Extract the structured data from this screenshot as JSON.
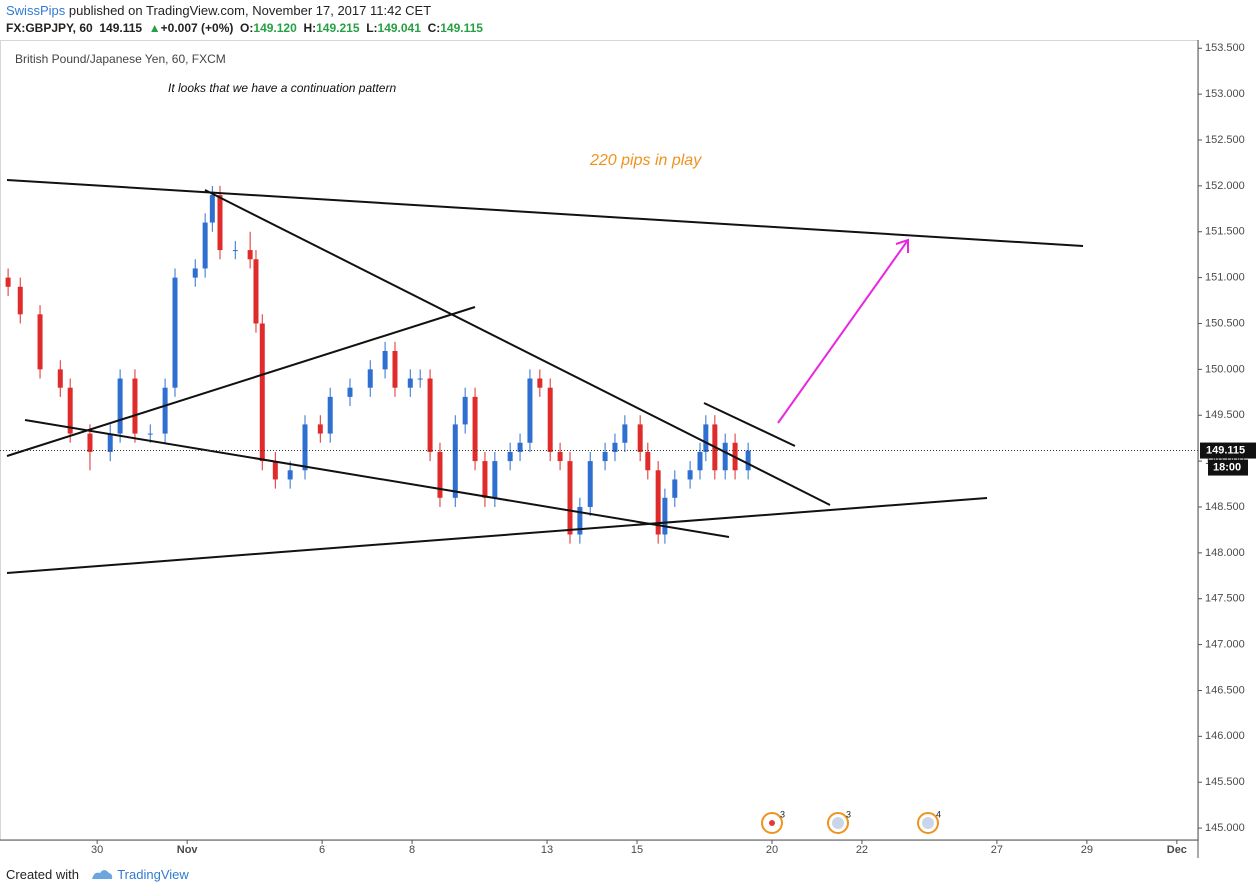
{
  "header": {
    "author": "SwissPips",
    "published": "published on TradingView.com, November 17, 2017 11:42 CET",
    "symbol": "FX:GBPJPY, 60",
    "price": "149.115",
    "arrow": "▲",
    "change": "+0.007 (+0%)",
    "o_label": "O:",
    "open": "149.120",
    "h_label": "H:",
    "high": "149.215",
    "l_label": "L:",
    "low": "149.041",
    "c_label": "C:",
    "close": "149.115"
  },
  "chart_data": {
    "type": "candlestick",
    "title": "British Pound/Japanese Yen, 60, FXCM",
    "annotations": [
      "It looks that we have a continuation pattern",
      "220 pips in play"
    ],
    "x": [
      -1.98,
      -1.71,
      -1.27,
      -0.82,
      -0.6,
      -0.16,
      0.29,
      0.51,
      0.84,
      1.18,
      1.51,
      1.73,
      2.18,
      2.4,
      2.56,
      2.73,
      3.07,
      3.4,
      3.53,
      3.67,
      3.96,
      4.29,
      4.62,
      4.96,
      5.18,
      5.62,
      6.07,
      6.4,
      6.62,
      6.96,
      7.18,
      7.4,
      7.62,
      7.96,
      8.18,
      8.4,
      8.62,
      8.84,
      9.18,
      9.4,
      9.62,
      9.84,
      10.07,
      10.29,
      10.51,
      10.73,
      10.96,
      11.29,
      11.51,
      11.73,
      12.07,
      12.24,
      12.47,
      12.62,
      12.84,
      13.18,
      13.4,
      13.53,
      13.73,
      13.96,
      14.18,
      14.47
    ],
    "ohlc": {
      "up_color": "#2e6fd0",
      "down_color": "#e02b2b",
      "open": [
        151.0,
        150.9,
        150.6,
        150.0,
        149.8,
        149.3,
        149.1,
        149.3,
        149.9,
        149.3,
        149.3,
        149.8,
        151.0,
        151.1,
        151.6,
        151.9,
        151.3,
        151.3,
        151.2,
        150.5,
        149.0,
        148.8,
        148.9,
        149.4,
        149.3,
        149.7,
        149.8,
        150.0,
        150.2,
        149.8,
        149.9,
        149.9,
        149.1,
        148.6,
        149.4,
        149.7,
        149.0,
        148.6,
        149.0,
        149.1,
        149.2,
        149.9,
        149.8,
        149.1,
        149.0,
        148.2,
        148.5,
        149.0,
        149.1,
        149.2,
        149.4,
        149.1,
        148.9,
        148.2,
        148.6,
        148.8,
        148.9,
        149.1,
        149.4,
        148.9,
        149.2,
        148.9
      ],
      "high": [
        151.1,
        151.0,
        150.7,
        150.1,
        149.9,
        149.4,
        149.4,
        150.0,
        150.0,
        149.4,
        149.9,
        151.1,
        151.2,
        151.7,
        152.0,
        152.0,
        151.4,
        151.5,
        151.3,
        150.6,
        149.1,
        149.0,
        149.5,
        149.5,
        149.8,
        149.9,
        150.1,
        150.3,
        150.3,
        150.0,
        150.0,
        150.0,
        149.2,
        149.5,
        149.8,
        149.8,
        149.1,
        149.1,
        149.2,
        149.3,
        150.0,
        150.0,
        149.9,
        149.2,
        149.1,
        148.6,
        149.1,
        149.2,
        149.3,
        149.5,
        149.5,
        149.2,
        149.0,
        148.7,
        148.9,
        149.0,
        149.2,
        149.5,
        149.5,
        149.3,
        149.3,
        149.2
      ],
      "low": [
        150.8,
        150.5,
        149.9,
        149.7,
        149.2,
        148.9,
        149.0,
        149.2,
        149.2,
        149.2,
        149.2,
        149.7,
        150.9,
        151.0,
        151.5,
        151.2,
        151.2,
        151.1,
        150.4,
        148.9,
        148.7,
        148.7,
        148.8,
        149.2,
        149.2,
        149.6,
        149.7,
        149.9,
        149.7,
        149.7,
        149.8,
        149.0,
        148.5,
        148.5,
        149.3,
        148.9,
        148.5,
        148.5,
        148.9,
        149.0,
        149.1,
        149.7,
        149.0,
        148.9,
        148.1,
        148.1,
        148.4,
        148.9,
        149.0,
        149.1,
        149.0,
        148.8,
        148.1,
        148.1,
        148.5,
        148.7,
        148.8,
        149.0,
        148.8,
        148.8,
        148.8,
        148.8
      ],
      "close": [
        150.9,
        150.6,
        150.0,
        149.8,
        149.3,
        149.1,
        149.3,
        149.9,
        149.3,
        149.3,
        149.8,
        151.0,
        151.1,
        151.6,
        151.9,
        151.3,
        151.3,
        151.2,
        150.5,
        149.0,
        148.8,
        148.9,
        149.4,
        149.3,
        149.7,
        149.8,
        150.0,
        150.2,
        149.8,
        149.9,
        149.9,
        149.1,
        148.6,
        149.4,
        149.7,
        149.0,
        148.6,
        149.0,
        149.1,
        149.2,
        149.9,
        149.8,
        149.1,
        149.0,
        148.2,
        148.5,
        149.0,
        149.1,
        149.2,
        149.4,
        149.1,
        148.9,
        148.2,
        148.6,
        148.8,
        148.9,
        149.1,
        149.4,
        148.9,
        149.2,
        148.9,
        149.115
      ]
    },
    "xlim": [
      -2.16,
      24.47
    ],
    "xticks": [
      {
        "value": 0,
        "label": "30"
      },
      {
        "value": 2,
        "label": "Nov"
      },
      {
        "value": 5,
        "label": "6"
      },
      {
        "value": 7,
        "label": "8"
      },
      {
        "value": 10,
        "label": "13"
      },
      {
        "value": 12,
        "label": "15"
      },
      {
        "value": 15,
        "label": "20"
      },
      {
        "value": 17,
        "label": "22"
      },
      {
        "value": 20,
        "label": "27"
      },
      {
        "value": 22,
        "label": "29"
      },
      {
        "value": 24,
        "label": "Dec"
      }
    ],
    "ylim": [
      144.87,
      153.59
    ],
    "yticks": [
      {
        "value": 145,
        "label": "145.000"
      },
      {
        "value": 145.5,
        "label": "145.500"
      },
      {
        "value": 146,
        "label": "146.000"
      },
      {
        "value": 146.5,
        "label": "146.500"
      },
      {
        "value": 147,
        "label": "147.000"
      },
      {
        "value": 147.5,
        "label": "147.500"
      },
      {
        "value": 148,
        "label": "148.000"
      },
      {
        "value": 148.5,
        "label": "148.500"
      },
      {
        "value": 149,
        "label": "149.000"
      },
      {
        "value": 149.5,
        "label": "149.500"
      },
      {
        "value": 150,
        "label": "150.000"
      },
      {
        "value": 150.5,
        "label": "150.500"
      },
      {
        "value": 151,
        "label": "151.000"
      },
      {
        "value": 151.5,
        "label": "151.500"
      },
      {
        "value": 152,
        "label": "152.000"
      },
      {
        "value": 152.5,
        "label": "152.500"
      },
      {
        "value": 153,
        "label": "153.000"
      },
      {
        "value": 153.5,
        "label": "153.500"
      }
    ],
    "last_price": {
      "value": 149.115,
      "label": "149.115"
    },
    "last_time": "18:00",
    "events": [
      "3",
      "3",
      "4"
    ]
  },
  "footer": {
    "prefix": "Created with",
    "brand": "TradingView"
  }
}
